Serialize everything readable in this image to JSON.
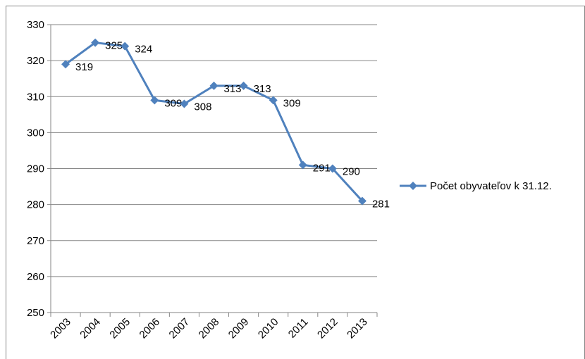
{
  "chart_data": {
    "type": "line",
    "categories": [
      "2003",
      "2004",
      "2005",
      "2006",
      "2007",
      "2008",
      "2009",
      "2010",
      "2011",
      "2012",
      "2013"
    ],
    "series": [
      {
        "name": "Počet obyvateľov k 31.12.",
        "color": "#4f81bd",
        "values": [
          319,
          325,
          324,
          309,
          308,
          313,
          313,
          309,
          291,
          290,
          281
        ]
      }
    ],
    "ylim": [
      250,
      330
    ],
    "yticks": [
      250,
      260,
      270,
      280,
      290,
      300,
      310,
      320,
      330
    ],
    "grid": true,
    "legend": "right",
    "data_labels": true
  }
}
